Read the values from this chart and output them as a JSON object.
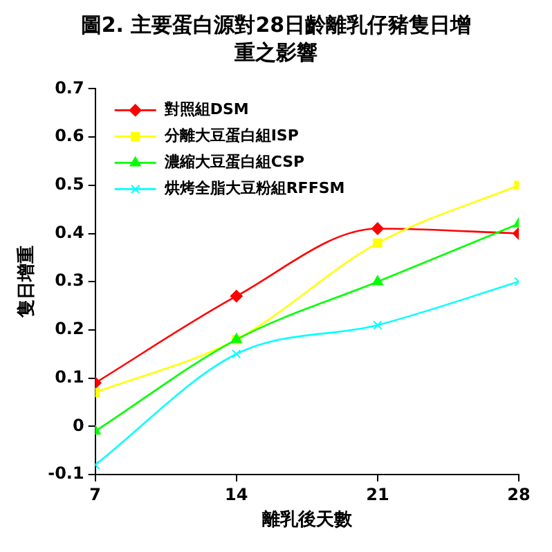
{
  "chart_data": {
    "type": "line",
    "title": "圖2. 主要蛋白源對28日齡離乳仔豬隻日增重之影響",
    "xlabel": "離乳後天數",
    "ylabel": "隻日增重",
    "x": [
      7,
      14,
      21,
      28
    ],
    "xlim": [
      7,
      28
    ],
    "xticks": [
      7,
      14,
      21,
      28
    ],
    "ylim": [
      -0.1,
      0.7
    ],
    "yticks": [
      -0.1,
      0,
      0.1,
      0.2,
      0.3,
      0.4,
      0.5,
      0.6,
      0.7
    ],
    "grid": false,
    "legend": "top left",
    "line_style": "solid",
    "series": [
      {
        "name": "對照組DSM",
        "color": "#ff0000",
        "marker": "diamond",
        "values": [
          0.09,
          0.27,
          0.41,
          0.4
        ]
      },
      {
        "name": "分離大豆蛋白組ISP",
        "color": "#ffff00",
        "marker": "square",
        "values": [
          0.07,
          0.18,
          0.38,
          0.5
        ]
      },
      {
        "name": "濃縮大豆蛋白組CSP",
        "color": "#00ff00",
        "marker": "triangle",
        "values": [
          -0.01,
          0.18,
          0.3,
          0.42
        ]
      },
      {
        "name": "烘烤全脂大豆粉組RFFSM",
        "color": "#00ffff",
        "marker": "cross",
        "values": [
          -0.08,
          0.15,
          0.21,
          0.3
        ]
      }
    ]
  }
}
